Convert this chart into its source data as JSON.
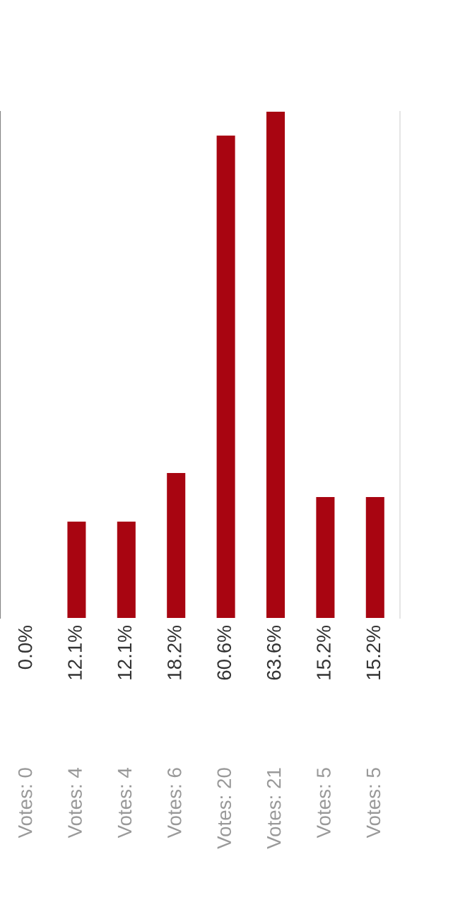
{
  "chart_data": {
    "type": "bar",
    "categories": [
      "Votes: 0",
      "Votes: 4",
      "Votes: 4",
      "Votes: 6",
      "Votes: 20",
      "Votes: 21",
      "Votes: 5",
      "Votes: 5"
    ],
    "values": [
      0.0,
      12.1,
      12.1,
      18.2,
      60.6,
      63.6,
      15.2,
      15.2
    ],
    "color": "#a80511",
    "value_labels": [
      "0.0%",
      "12.1%",
      "12.1%",
      "18.2%",
      "60.6%",
      "63.6%",
      "15.2%",
      "15.2%"
    ]
  }
}
